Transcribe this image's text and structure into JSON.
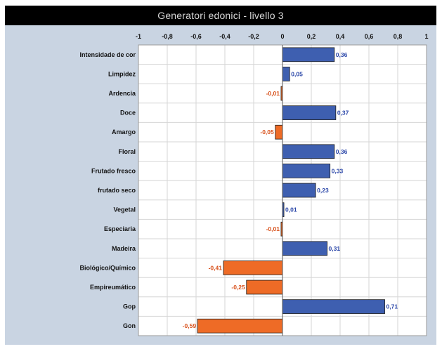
{
  "title": "Generatori edonici - livello 3",
  "colors": {
    "positive": "#3e5fb0",
    "negative": "#ee6b26",
    "positive_label": "#2a46a8",
    "negative_label": "#d8501a",
    "frame": "#c9d4e2",
    "plot_bg": "#ffffff",
    "grid": "#d6d6d6"
  },
  "chart_data": {
    "type": "bar",
    "orientation": "horizontal",
    "title": "Generatori edonici - livello 3",
    "xlim": [
      -1,
      1
    ],
    "ticks": [
      "-1",
      "-0,8",
      "-0,6",
      "-0,4",
      "-0,2",
      "0",
      "0,2",
      "0,4",
      "0,6",
      "0,8",
      "1"
    ],
    "tick_values": [
      -1,
      -0.8,
      -0.6,
      -0.4,
      -0.2,
      0,
      0.2,
      0.4,
      0.6,
      0.8,
      1
    ],
    "grid": true,
    "categories": [
      "Intensidade de cor",
      "Limpidez",
      "Ardencia",
      "Doce",
      "Amargo",
      "Floral",
      "Frutado fresco",
      "frutado seco",
      "Vegetal",
      "Especiaria",
      "Madeira",
      "Biológico/Químico",
      "Empireumático",
      "Gop",
      "Gon"
    ],
    "values": [
      0.36,
      0.05,
      -0.01,
      0.37,
      -0.05,
      0.36,
      0.33,
      0.23,
      0.01,
      -0.01,
      0.31,
      -0.41,
      -0.25,
      0.71,
      -0.59
    ],
    "value_labels": [
      "0,36",
      "0,05",
      "-0,01",
      "0,37",
      "-0,05",
      "0,36",
      "0,33",
      "0,23",
      "0,01",
      "-0,01",
      "0,31",
      "-0,41",
      "-0,25",
      "0,71",
      "-0,59"
    ]
  }
}
